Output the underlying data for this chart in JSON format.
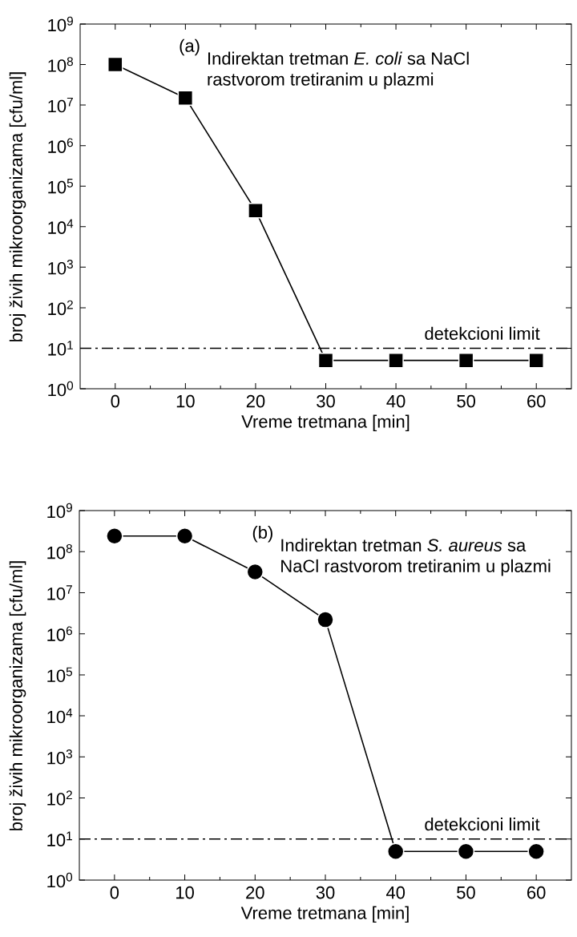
{
  "chart_data": [
    {
      "type": "line",
      "xlabel": "Vreme tretmana [min]",
      "ylabel": "broj živih mikroorganizama [cfu/ml]",
      "annotations": [
        "(a)",
        "Indirektan tretman *E. coli* sa NaCl rastvorom tretiranim u plazmi"
      ],
      "x": [
        0,
        10,
        20,
        30,
        40,
        50,
        60
      ],
      "series": [
        {
          "color": "#000000",
          "values": [
            100000000,
            15000000,
            25000,
            5,
            5,
            5,
            5
          ]
        }
      ],
      "marker": "square",
      "line_style": "solid",
      "log": "y",
      "xlim": [
        -5,
        65
      ],
      "xticks": [
        0,
        10,
        20,
        30,
        40,
        50,
        60
      ],
      "ylim": [
        1,
        1000000000
      ],
      "yticks": [
        {
          "value": 1,
          "label": "10$^{0}$"
        },
        {
          "value": 10,
          "label": "10$^{1}$"
        },
        {
          "value": 100,
          "label": "10$^{2}$"
        },
        {
          "value": 1000,
          "label": "10$^{3}$"
        },
        {
          "value": 10000,
          "label": "10$^{4}$"
        },
        {
          "value": 100000,
          "label": "10$^{5}$"
        },
        {
          "value": 1000000,
          "label": "10$^{6}$"
        },
        {
          "value": 10000000,
          "label": "10$^{7}$"
        },
        {
          "value": 100000000,
          "label": "10$^{8}$"
        },
        {
          "value": 1000000000,
          "label": "10$^{9}$"
        }
      ],
      "ref_lines": [
        {
          "axis": "y",
          "value": 10,
          "label": "detekcioni limit",
          "line_style": "dashdot",
          "color": "#000000"
        }
      ],
      "grid": false
    },
    {
      "type": "line",
      "xlabel": "Vreme tretmana [min]",
      "ylabel": "broj živih mikroorganizama [cfu/ml]",
      "annotations": [
        "(b)",
        "Indirektan tretman *S. aureus* sa NaCl rastvorom tretiranim u plazmi"
      ],
      "x": [
        0,
        10,
        20,
        30,
        40,
        50,
        60
      ],
      "series": [
        {
          "color": "#000000",
          "values": [
            240000000,
            240000000,
            32000000,
            2200000,
            5,
            5,
            5
          ]
        }
      ],
      "marker": "circle",
      "line_style": "solid",
      "log": "y",
      "xlim": [
        -5,
        65
      ],
      "xticks": [
        0,
        10,
        20,
        30,
        40,
        50,
        60
      ],
      "ylim": [
        1,
        1000000000
      ],
      "yticks": [
        {
          "value": 1,
          "label": "10$^{0}$"
        },
        {
          "value": 10,
          "label": "10$^{1}$"
        },
        {
          "value": 100,
          "label": "10$^{2}$"
        },
        {
          "value": 1000,
          "label": "10$^{3}$"
        },
        {
          "value": 10000,
          "label": "10$^{4}$"
        },
        {
          "value": 100000,
          "label": "10$^{5}$"
        },
        {
          "value": 1000000,
          "label": "10$^{6}$"
        },
        {
          "value": 10000000,
          "label": "10$^{7}$"
        },
        {
          "value": 100000000,
          "label": "10$^{8}$"
        },
        {
          "value": 1000000000,
          "label": "10$^{9}$"
        }
      ],
      "ref_lines": [
        {
          "axis": "y",
          "value": 10,
          "label": "detekcioni limit",
          "line_style": "dashdot",
          "color": "#000000"
        }
      ],
      "grid": false
    }
  ]
}
